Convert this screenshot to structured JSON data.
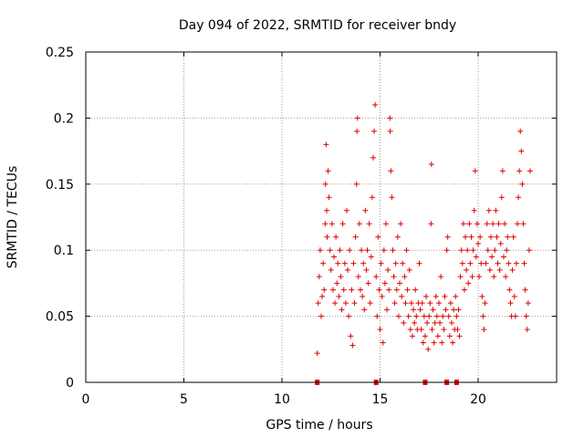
{
  "chart_data": {
    "type": "scatter",
    "title": "Day 094 of 2022, SRMTID for receiver bndy",
    "xlabel": "GPS time / hours",
    "ylabel": "SRMTID / TECUs",
    "xlim": [
      0,
      24
    ],
    "ylim": [
      0,
      0.25
    ],
    "xticks": [
      {
        "value": 0,
        "label": "0"
      },
      {
        "value": 5,
        "label": "5"
      },
      {
        "value": 10,
        "label": "10"
      },
      {
        "value": 15,
        "label": "15"
      },
      {
        "value": 20,
        "label": "20"
      }
    ],
    "yticks": [
      {
        "value": 0,
        "label": "0"
      },
      {
        "value": 0.05,
        "label": "0.05"
      },
      {
        "value": 0.1,
        "label": "0.1"
      },
      {
        "value": 0.15,
        "label": "0.15"
      },
      {
        "value": 0.2,
        "label": "0.2"
      },
      {
        "value": 0.25,
        "label": "0.25"
      }
    ],
    "grid": true,
    "marker": "+",
    "color": "#e00000",
    "series": [
      {
        "name": "SRMTID",
        "points": [
          [
            11.8,
            0.022
          ],
          [
            11.85,
            0.06
          ],
          [
            11.9,
            0.08
          ],
          [
            11.95,
            0.1
          ],
          [
            12.0,
            0.05
          ],
          [
            12.05,
            0.065
          ],
          [
            12.1,
            0.09
          ],
          [
            12.15,
            0.07
          ],
          [
            12.2,
            0.12
          ],
          [
            12.22,
            0.15
          ],
          [
            12.25,
            0.18
          ],
          [
            12.28,
            0.13
          ],
          [
            12.3,
            0.11
          ],
          [
            12.35,
            0.16
          ],
          [
            12.4,
            0.14
          ],
          [
            12.45,
            0.1
          ],
          [
            12.5,
            0.085
          ],
          [
            12.55,
            0.12
          ],
          [
            12.6,
            0.07
          ],
          [
            12.65,
            0.095
          ],
          [
            12.7,
            0.06
          ],
          [
            12.75,
            0.11
          ],
          [
            12.8,
            0.075
          ],
          [
            12.85,
            0.09
          ],
          [
            12.9,
            0.065
          ],
          [
            12.95,
            0.1
          ],
          [
            13.0,
            0.08
          ],
          [
            13.05,
            0.055
          ],
          [
            13.1,
            0.12
          ],
          [
            13.15,
            0.07
          ],
          [
            13.2,
            0.09
          ],
          [
            13.25,
            0.06
          ],
          [
            13.3,
            0.13
          ],
          [
            13.35,
            0.085
          ],
          [
            13.4,
            0.05
          ],
          [
            13.45,
            0.1
          ],
          [
            13.5,
            0.035
          ],
          [
            13.55,
            0.07
          ],
          [
            13.6,
            0.028
          ],
          [
            13.65,
            0.09
          ],
          [
            13.7,
            0.06
          ],
          [
            13.75,
            0.11
          ],
          [
            13.8,
            0.15
          ],
          [
            13.82,
            0.19
          ],
          [
            13.85,
            0.2
          ],
          [
            13.9,
            0.08
          ],
          [
            13.95,
            0.12
          ],
          [
            14.0,
            0.07
          ],
          [
            14.05,
            0.1
          ],
          [
            14.1,
            0.065
          ],
          [
            14.15,
            0.09
          ],
          [
            14.2,
            0.055
          ],
          [
            14.25,
            0.13
          ],
          [
            14.3,
            0.085
          ],
          [
            14.35,
            0.1
          ],
          [
            14.4,
            0.075
          ],
          [
            14.45,
            0.12
          ],
          [
            14.5,
            0.06
          ],
          [
            14.55,
            0.095
          ],
          [
            14.6,
            0.14
          ],
          [
            14.65,
            0.17
          ],
          [
            14.7,
            0.19
          ],
          [
            14.75,
            0.21
          ],
          [
            14.8,
            0.08
          ],
          [
            14.85,
            0.05
          ],
          [
            14.9,
            0.11
          ],
          [
            14.95,
            0.07
          ],
          [
            15.0,
            0.04
          ],
          [
            15.05,
            0.09
          ],
          [
            15.1,
            0.065
          ],
          [
            15.15,
            0.03
          ],
          [
            15.2,
            0.1
          ],
          [
            15.25,
            0.075
          ],
          [
            15.3,
            0.12
          ],
          [
            15.35,
            0.055
          ],
          [
            15.4,
            0.085
          ],
          [
            15.45,
            0.07
          ],
          [
            15.5,
            0.2
          ],
          [
            15.52,
            0.19
          ],
          [
            15.55,
            0.16
          ],
          [
            15.6,
            0.14
          ],
          [
            15.65,
            0.1
          ],
          [
            15.7,
            0.08
          ],
          [
            15.75,
            0.06
          ],
          [
            15.8,
            0.09
          ],
          [
            15.85,
            0.07
          ],
          [
            15.9,
            0.11
          ],
          [
            15.95,
            0.05
          ],
          [
            16.0,
            0.075
          ],
          [
            16.05,
            0.12
          ],
          [
            16.1,
            0.065
          ],
          [
            16.15,
            0.09
          ],
          [
            16.2,
            0.045
          ],
          [
            16.25,
            0.08
          ],
          [
            16.3,
            0.06
          ],
          [
            16.35,
            0.1
          ],
          [
            16.4,
            0.07
          ],
          [
            16.45,
            0.05
          ],
          [
            16.5,
            0.085
          ],
          [
            16.55,
            0.04
          ],
          [
            16.6,
            0.06
          ],
          [
            16.65,
            0.035
          ],
          [
            16.7,
            0.055
          ],
          [
            16.75,
            0.045
          ],
          [
            16.8,
            0.07
          ],
          [
            16.85,
            0.05
          ],
          [
            16.9,
            0.04
          ],
          [
            16.95,
            0.06
          ],
          [
            17.0,
            0.09
          ],
          [
            17.05,
            0.055
          ],
          [
            17.1,
            0.04
          ],
          [
            17.15,
            0.06
          ],
          [
            17.2,
            0.03
          ],
          [
            17.25,
            0.05
          ],
          [
            17.3,
            0.035
          ],
          [
            17.35,
            0.065
          ],
          [
            17.4,
            0.045
          ],
          [
            17.45,
            0.025
          ],
          [
            17.5,
            0.05
          ],
          [
            17.55,
            0.06
          ],
          [
            17.6,
            0.12
          ],
          [
            17.62,
            0.165
          ],
          [
            17.65,
            0.04
          ],
          [
            17.7,
            0.055
          ],
          [
            17.75,
            0.03
          ],
          [
            17.8,
            0.045
          ],
          [
            17.85,
            0.065
          ],
          [
            17.9,
            0.05
          ],
          [
            17.95,
            0.035
          ],
          [
            18.0,
            0.06
          ],
          [
            18.05,
            0.045
          ],
          [
            18.1,
            0.08
          ],
          [
            18.15,
            0.03
          ],
          [
            18.2,
            0.05
          ],
          [
            18.25,
            0.04
          ],
          [
            18.3,
            0.065
          ],
          [
            18.35,
            0.055
          ],
          [
            18.4,
            0.1
          ],
          [
            18.45,
            0.11
          ],
          [
            18.5,
            0.05
          ],
          [
            18.55,
            0.035
          ],
          [
            18.6,
            0.06
          ],
          [
            18.65,
            0.045
          ],
          [
            18.7,
            0.03
          ],
          [
            18.75,
            0.055
          ],
          [
            18.8,
            0.04
          ],
          [
            18.85,
            0.065
          ],
          [
            18.9,
            0.05
          ],
          [
            18.95,
            0.04
          ],
          [
            19.0,
            0.055
          ],
          [
            19.05,
            0.035
          ],
          [
            19.1,
            0.08
          ],
          [
            19.15,
            0.1
          ],
          [
            19.2,
            0.09
          ],
          [
            19.25,
            0.12
          ],
          [
            19.3,
            0.07
          ],
          [
            19.35,
            0.11
          ],
          [
            19.4,
            0.085
          ],
          [
            19.45,
            0.1
          ],
          [
            19.5,
            0.075
          ],
          [
            19.55,
            0.12
          ],
          [
            19.6,
            0.09
          ],
          [
            19.65,
            0.11
          ],
          [
            19.7,
            0.08
          ],
          [
            19.75,
            0.1
          ],
          [
            19.8,
            0.13
          ],
          [
            19.85,
            0.16
          ],
          [
            19.9,
            0.095
          ],
          [
            19.95,
            0.12
          ],
          [
            20.0,
            0.105
          ],
          [
            20.05,
            0.08
          ],
          [
            20.1,
            0.11
          ],
          [
            20.15,
            0.09
          ],
          [
            20.2,
            0.065
          ],
          [
            20.25,
            0.05
          ],
          [
            20.3,
            0.04
          ],
          [
            20.35,
            0.06
          ],
          [
            20.4,
            0.09
          ],
          [
            20.45,
            0.12
          ],
          [
            20.5,
            0.1
          ],
          [
            20.55,
            0.13
          ],
          [
            20.6,
            0.085
          ],
          [
            20.65,
            0.11
          ],
          [
            20.7,
            0.095
          ],
          [
            20.75,
            0.12
          ],
          [
            20.8,
            0.08
          ],
          [
            20.85,
            0.1
          ],
          [
            20.9,
            0.13
          ],
          [
            20.95,
            0.11
          ],
          [
            21.0,
            0.09
          ],
          [
            21.05,
            0.12
          ],
          [
            21.1,
            0.085
          ],
          [
            21.15,
            0.105
          ],
          [
            21.2,
            0.14
          ],
          [
            21.25,
            0.16
          ],
          [
            21.3,
            0.095
          ],
          [
            21.35,
            0.12
          ],
          [
            21.4,
            0.08
          ],
          [
            21.45,
            0.1
          ],
          [
            21.5,
            0.11
          ],
          [
            21.55,
            0.09
          ],
          [
            21.6,
            0.07
          ],
          [
            21.65,
            0.06
          ],
          [
            21.7,
            0.05
          ],
          [
            21.75,
            0.085
          ],
          [
            21.8,
            0.11
          ],
          [
            21.85,
            0.065
          ],
          [
            21.9,
            0.05
          ],
          [
            21.95,
            0.09
          ],
          [
            22.0,
            0.12
          ],
          [
            22.05,
            0.14
          ],
          [
            22.1,
            0.16
          ],
          [
            22.15,
            0.19
          ],
          [
            22.2,
            0.175
          ],
          [
            22.25,
            0.15
          ],
          [
            22.3,
            0.12
          ],
          [
            22.35,
            0.09
          ],
          [
            22.4,
            0.07
          ],
          [
            22.45,
            0.05
          ],
          [
            22.5,
            0.04
          ],
          [
            22.55,
            0.06
          ],
          [
            22.6,
            0.1
          ],
          [
            22.65,
            0.16
          ]
        ]
      }
    ],
    "flag_markers_x": [
      11.8,
      14.8,
      17.3,
      18.4,
      18.9
    ]
  }
}
